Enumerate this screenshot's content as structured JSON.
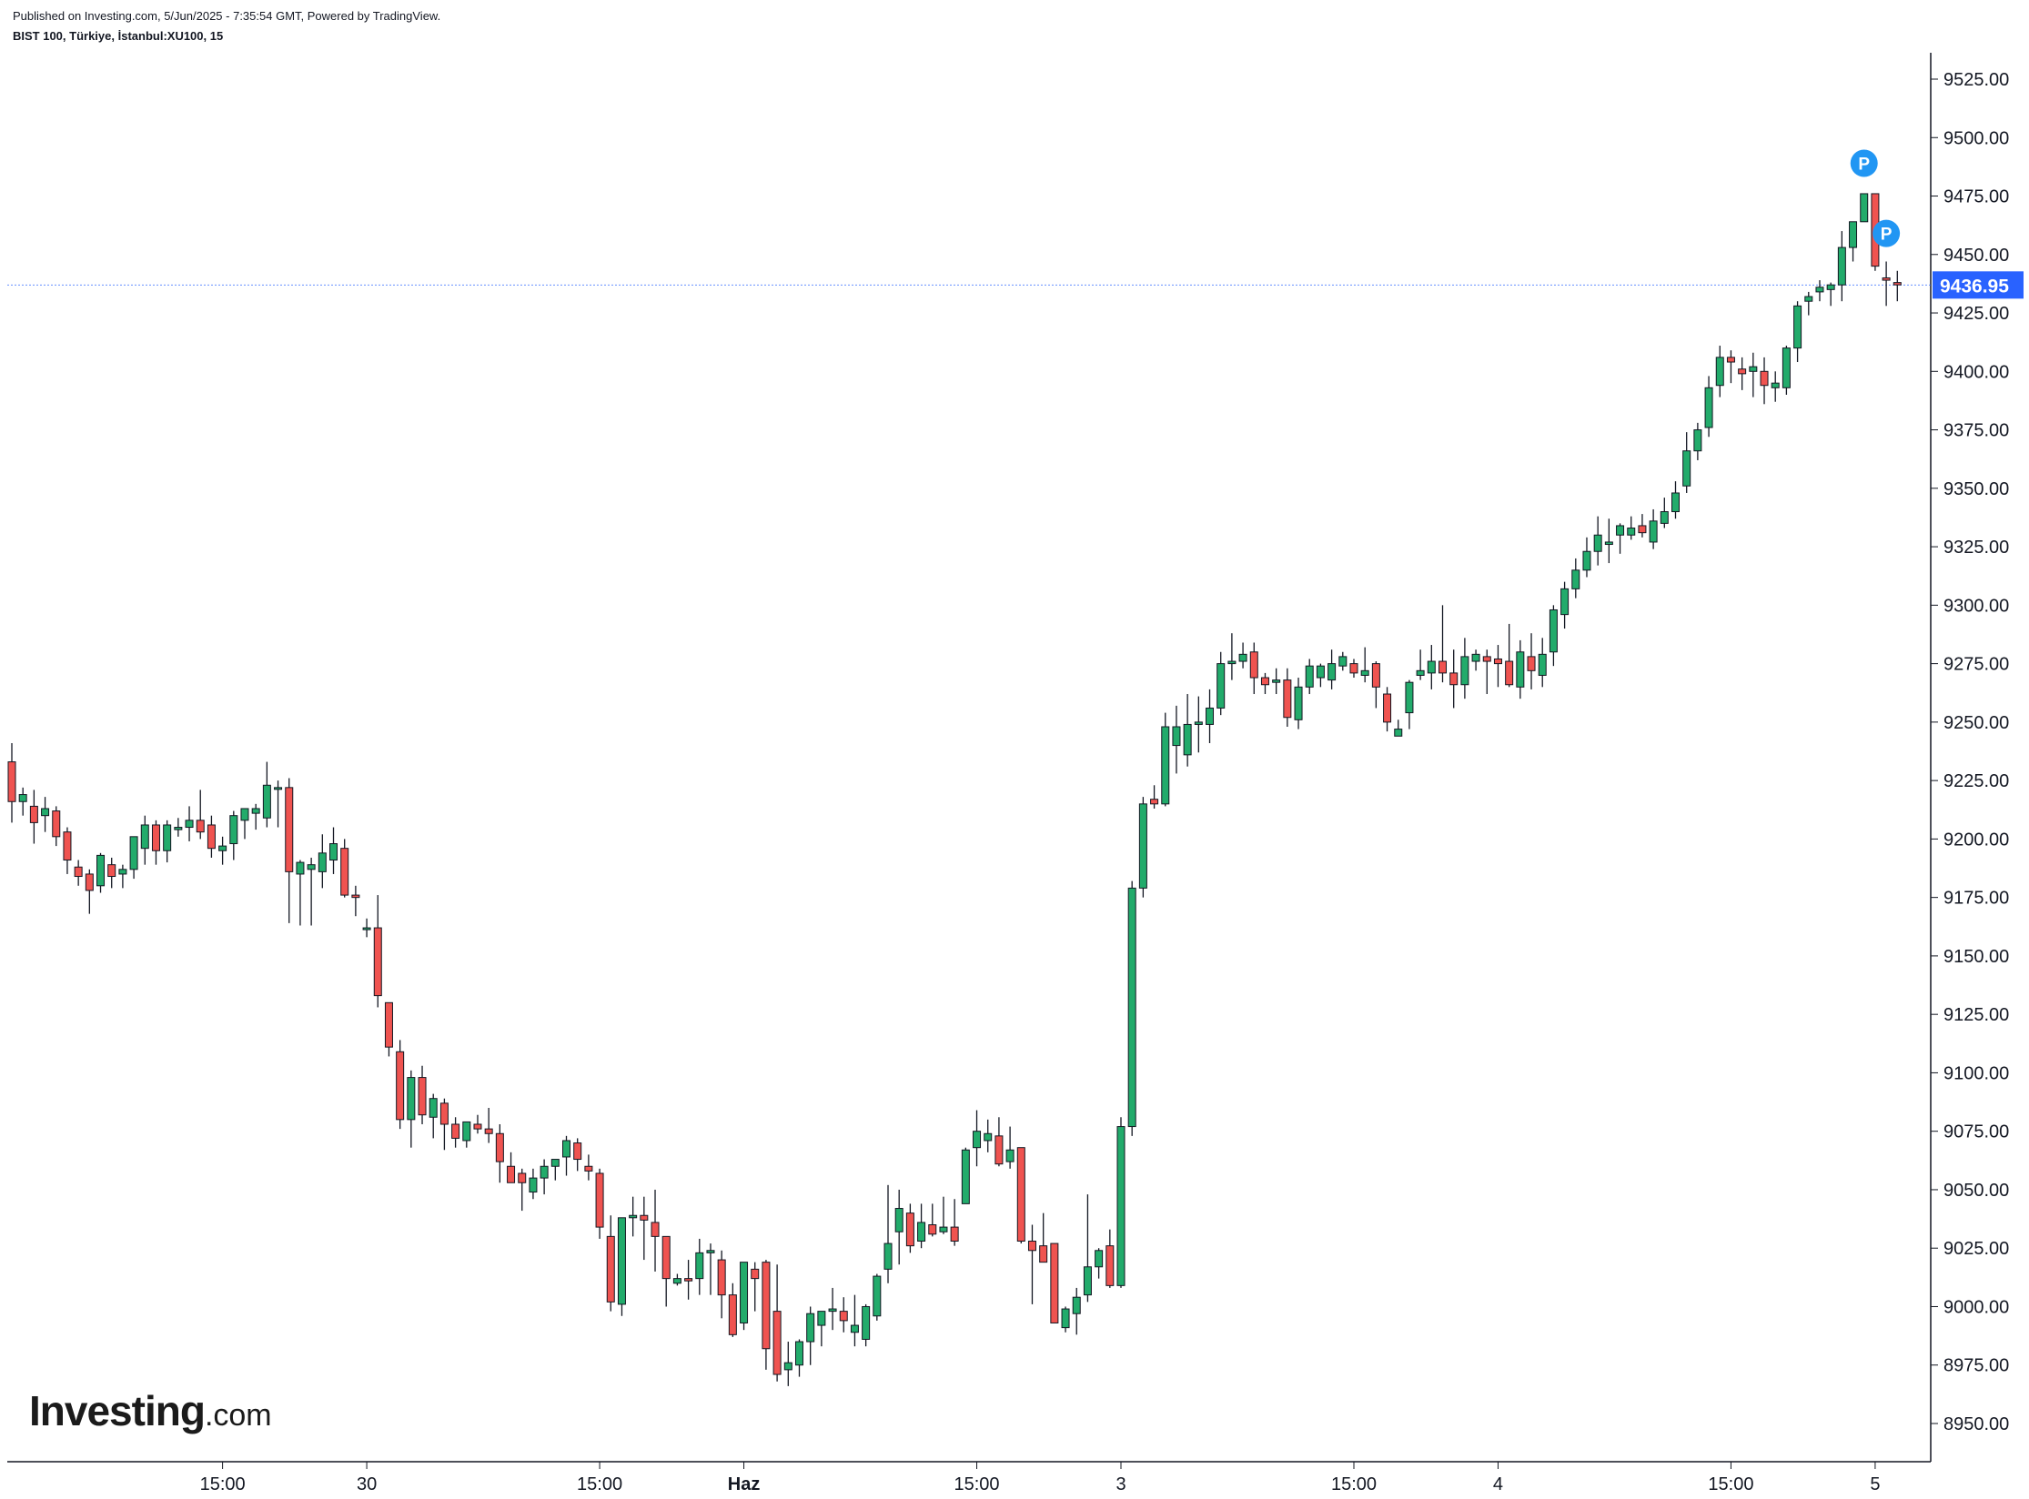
{
  "header": {
    "published": "Published on Investing.com, 5/Jun/2025 - 7:35:54 GMT, Powered by TradingView.",
    "symbol": "BIST 100, Türkiye, İstanbul:XU100, 15"
  },
  "logo": {
    "main": "Investing",
    "suffix": ".com"
  },
  "colors": {
    "up": "#22ab6b",
    "down": "#ef5350",
    "wick": "#131722",
    "current_price_bg": "#2962ff",
    "current_line": "#2962ff",
    "marker": "#2196f3"
  },
  "markers": [
    {
      "label": "P",
      "bar": 167,
      "price": 9489
    },
    {
      "label": "P",
      "bar": 169,
      "price": 9459
    }
  ],
  "chart_data": {
    "type": "candlestick",
    "ylim": [
      8935,
      9545
    ],
    "y_ticks": [
      "9525.00",
      "9500.00",
      "9475.00",
      "9450.00",
      "9425.00",
      "9400.00",
      "9375.00",
      "9350.00",
      "9325.00",
      "9300.00",
      "9275.00",
      "9250.00",
      "9225.00",
      "9200.00",
      "9175.00",
      "9150.00",
      "9125.00",
      "9100.00",
      "9075.00",
      "9050.00",
      "9025.00",
      "9000.00",
      "8975.00",
      "8950.00"
    ],
    "x_ticks": [
      {
        "label": "15:00",
        "bar": 19,
        "bold": false
      },
      {
        "label": "30",
        "bar": 32,
        "bold": false
      },
      {
        "label": "15:00",
        "bar": 53,
        "bold": false
      },
      {
        "label": "Haz",
        "bar": 66,
        "bold": true
      },
      {
        "label": "15:00",
        "bar": 87,
        "bold": false
      },
      {
        "label": "3",
        "bar": 100,
        "bold": false
      },
      {
        "label": "15:00",
        "bar": 121,
        "bold": false
      },
      {
        "label": "4",
        "bar": 134,
        "bold": false
      },
      {
        "label": "15:00",
        "bar": 155,
        "bold": false
      },
      {
        "label": "5",
        "bar": 168,
        "bold": false
      }
    ],
    "current_price": 9436.95,
    "current_price_label": "9436.95",
    "ohlc": [
      [
        9233,
        9241,
        9207,
        9216
      ],
      [
        9216,
        9222,
        9210,
        9219
      ],
      [
        9214,
        9221,
        9198,
        9207
      ],
      [
        9210,
        9218,
        9203,
        9213
      ],
      [
        9212,
        9214,
        9197,
        9201
      ],
      [
        9203,
        9205,
        9185,
        9191
      ],
      [
        9188,
        9191,
        9180,
        9184
      ],
      [
        9185,
        9187,
        9168,
        9178
      ],
      [
        9180,
        9194,
        9177,
        9193
      ],
      [
        9189,
        9192,
        9179,
        9184
      ],
      [
        9185,
        9189,
        9179,
        9187
      ],
      [
        9187,
        9201,
        9183,
        9201
      ],
      [
        9196,
        9210,
        9189,
        9206
      ],
      [
        9206,
        9208,
        9189,
        9195
      ],
      [
        9195,
        9208,
        9190,
        9206
      ],
      [
        9204,
        9209,
        9201,
        9205
      ],
      [
        9205,
        9214,
        9199,
        9208
      ],
      [
        9208,
        9221,
        9200,
        9203
      ],
      [
        9206,
        9210,
        9192,
        9196
      ],
      [
        9195,
        9201,
        9189,
        9197
      ],
      [
        9198,
        9212,
        9191,
        9210
      ],
      [
        9208,
        9213,
        9200,
        9213
      ],
      [
        9211,
        9215,
        9204,
        9213
      ],
      [
        9209,
        9233,
        9205,
        9223
      ],
      [
        9222,
        9225,
        9205,
        9222
      ],
      [
        9222,
        9226,
        9164,
        9186
      ],
      [
        9185,
        9191,
        9163,
        9190
      ],
      [
        9187,
        9192,
        9163,
        9189
      ],
      [
        9186,
        9202,
        9179,
        9194
      ],
      [
        9191,
        9205,
        9185,
        9198
      ],
      [
        9196,
        9200,
        9175,
        9176
      ],
      [
        9176,
        9180,
        9167,
        9175
      ],
      [
        9162,
        9166,
        9158,
        9162
      ],
      [
        9162,
        9176,
        9128,
        9133
      ],
      [
        9130,
        9130,
        9107,
        9111
      ],
      [
        9109,
        9114,
        9076,
        9080
      ],
      [
        9080,
        9101,
        9068,
        9098
      ],
      [
        9098,
        9103,
        9078,
        9082
      ],
      [
        9081,
        9091,
        9072,
        9089
      ],
      [
        9087,
        9089,
        9067,
        9078
      ],
      [
        9078,
        9081,
        9068,
        9072
      ],
      [
        9071,
        9079,
        9068,
        9079
      ],
      [
        9078,
        9082,
        9074,
        9076
      ],
      [
        9076,
        9085,
        9070,
        9074
      ],
      [
        9074,
        9078,
        9053,
        9062
      ],
      [
        9060,
        9066,
        9054,
        9053
      ],
      [
        9057,
        9059,
        9041,
        9053
      ],
      [
        9049,
        9059,
        9046,
        9055
      ],
      [
        9055,
        9063,
        9048,
        9060
      ],
      [
        9060,
        9062,
        9054,
        9063
      ],
      [
        9064,
        9073,
        9056,
        9071
      ],
      [
        9070,
        9072,
        9058,
        9063
      ],
      [
        9060,
        9065,
        9054,
        9058
      ],
      [
        9057,
        9059,
        9029,
        9034
      ],
      [
        9030,
        9039,
        8998,
        9002
      ],
      [
        9001,
        9036,
        8996,
        9038
      ],
      [
        9038,
        9047,
        9030,
        9039
      ],
      [
        9039,
        9047,
        9020,
        9037
      ],
      [
        9036,
        9050,
        9015,
        9030
      ],
      [
        9030,
        9030,
        9000,
        9012
      ],
      [
        9010,
        9014,
        9009,
        9012
      ],
      [
        9012,
        9020,
        9003,
        9011
      ],
      [
        9012,
        9029,
        9005,
        9023
      ],
      [
        9023,
        9027,
        9005,
        9024
      ],
      [
        9020,
        9024,
        8995,
        9005
      ],
      [
        9005,
        9010,
        8987,
        8988
      ],
      [
        8993,
        9019,
        8990,
        9019
      ],
      [
        9016,
        9019,
        8998,
        9012
      ],
      [
        9019,
        9020,
        8973,
        8982
      ],
      [
        8998,
        9018,
        8968,
        8971
      ],
      [
        8973,
        8985,
        8966,
        8976
      ],
      [
        8975,
        8986,
        8970,
        8985
      ],
      [
        8985,
        9000,
        8975,
        8997
      ],
      [
        8992,
        8998,
        8983,
        8998
      ],
      [
        8998,
        9008,
        8990,
        8999
      ],
      [
        8998,
        9004,
        8989,
        8994
      ],
      [
        8989,
        9005,
        8983,
        8992
      ],
      [
        8986,
        9001,
        8983,
        9000
      ],
      [
        8996,
        9014,
        8994,
        9013
      ],
      [
        9016,
        9052,
        9010,
        9027
      ],
      [
        9032,
        9050,
        9018,
        9042
      ],
      [
        9040,
        9044,
        9023,
        9026
      ],
      [
        9028,
        9044,
        9025,
        9036
      ],
      [
        9035,
        9044,
        9030,
        9031
      ],
      [
        9032,
        9047,
        9031,
        9034
      ],
      [
        9034,
        9046,
        9026,
        9028
      ],
      [
        9044,
        9068,
        9044,
        9067
      ],
      [
        9068,
        9084,
        9060,
        9075
      ],
      [
        9071,
        9080,
        9066,
        9074
      ],
      [
        9073,
        9081,
        9060,
        9061
      ],
      [
        9062,
        9077,
        9059,
        9067
      ],
      [
        9068,
        9068,
        9027,
        9028
      ],
      [
        9028,
        9035,
        9001,
        9024
      ],
      [
        9026,
        9040,
        9023,
        9019
      ],
      [
        9027,
        9027,
        8994,
        8993
      ],
      [
        8991,
        9000,
        8989,
        8999
      ],
      [
        8997,
        9008,
        8988,
        9004
      ],
      [
        9005,
        9048,
        9002,
        9017
      ],
      [
        9017,
        9025,
        9012,
        9024
      ],
      [
        9026,
        9033,
        9008,
        9009
      ],
      [
        9009,
        9081,
        9008,
        9077
      ],
      [
        9077,
        9182,
        9073,
        9179
      ],
      [
        9179,
        9218,
        9175,
        9215
      ],
      [
        9217,
        9223,
        9213,
        9215
      ],
      [
        9215,
        9254,
        9214,
        9248
      ],
      [
        9240,
        9257,
        9228,
        9248
      ],
      [
        9236,
        9262,
        9231,
        9249
      ],
      [
        9249,
        9261,
        9237,
        9250
      ],
      [
        9249,
        9264,
        9241,
        9256
      ],
      [
        9256,
        9280,
        9253,
        9275
      ],
      [
        9275,
        9288,
        9268,
        9276
      ],
      [
        9276,
        9284,
        9273,
        9279
      ],
      [
        9280,
        9284,
        9262,
        9269
      ],
      [
        9269,
        9271,
        9262,
        9266
      ],
      [
        9267,
        9273,
        9262,
        9268
      ],
      [
        9268,
        9273,
        9248,
        9252
      ],
      [
        9251,
        9269,
        9247,
        9265
      ],
      [
        9265,
        9277,
        9262,
        9274
      ],
      [
        9269,
        9275,
        9265,
        9274
      ],
      [
        9268,
        9281,
        9264,
        9275
      ],
      [
        9274,
        9280,
        9272,
        9278
      ],
      [
        9275,
        9277,
        9269,
        9271
      ],
      [
        9270,
        9282,
        9267,
        9272
      ],
      [
        9275,
        9276,
        9256,
        9265
      ],
      [
        9262,
        9265,
        9246,
        9250
      ],
      [
        9244,
        9251,
        9244,
        9247
      ],
      [
        9254,
        9268,
        9247,
        9267
      ],
      [
        9270,
        9281,
        9268,
        9272
      ],
      [
        9271,
        9283,
        9264,
        9276
      ],
      [
        9276,
        9300,
        9267,
        9271
      ],
      [
        9271,
        9281,
        9256,
        9266
      ],
      [
        9266,
        9286,
        9260,
        9278
      ],
      [
        9276,
        9281,
        9272,
        9279
      ],
      [
        9278,
        9281,
        9262,
        9276
      ],
      [
        9277,
        9283,
        9265,
        9275
      ],
      [
        9276,
        9292,
        9265,
        9266
      ],
      [
        9265,
        9285,
        9260,
        9280
      ],
      [
        9278,
        9288,
        9264,
        9272
      ],
      [
        9270,
        9286,
        9265,
        9279
      ],
      [
        9280,
        9300,
        9274,
        9298
      ],
      [
        9296,
        9310,
        9290,
        9307
      ],
      [
        9307,
        9320,
        9303,
        9315
      ],
      [
        9315,
        9329,
        9312,
        9323
      ],
      [
        9323,
        9338,
        9317,
        9330
      ],
      [
        9326,
        9337,
        9318,
        9327
      ],
      [
        9330,
        9335,
        9322,
        9334
      ],
      [
        9330,
        9338,
        9328,
        9333
      ],
      [
        9334,
        9339,
        9329,
        9331
      ],
      [
        9327,
        9341,
        9324,
        9336
      ],
      [
        9335,
        9346,
        9333,
        9340
      ],
      [
        9340,
        9353,
        9337,
        9348
      ],
      [
        9351,
        9374,
        9348,
        9366
      ],
      [
        9366,
        9378,
        9362,
        9375
      ],
      [
        9376,
        9398,
        9372,
        9393
      ],
      [
        9394,
        9411,
        9389,
        9406
      ],
      [
        9406,
        9409,
        9395,
        9404
      ],
      [
        9401,
        9406,
        9392,
        9399
      ],
      [
        9400,
        9408,
        9389,
        9402
      ],
      [
        9400,
        9406,
        9386,
        9394
      ],
      [
        9393,
        9400,
        9387,
        9395
      ],
      [
        9393,
        9411,
        9390,
        9410
      ],
      [
        9410,
        9430,
        9404,
        9428
      ],
      [
        9430,
        9434,
        9424,
        9432
      ],
      [
        9434,
        9439,
        9430,
        9436
      ],
      [
        9435,
        9438,
        9428,
        9437
      ],
      [
        9437,
        9460,
        9430,
        9453
      ],
      [
        9453,
        9463,
        9447,
        9464
      ],
      [
        9464,
        9476,
        9464,
        9476
      ],
      [
        9476,
        9476,
        9443,
        9445
      ],
      [
        9440,
        9447,
        9428,
        9439
      ],
      [
        9438,
        9443,
        9430,
        9437
      ]
    ]
  }
}
